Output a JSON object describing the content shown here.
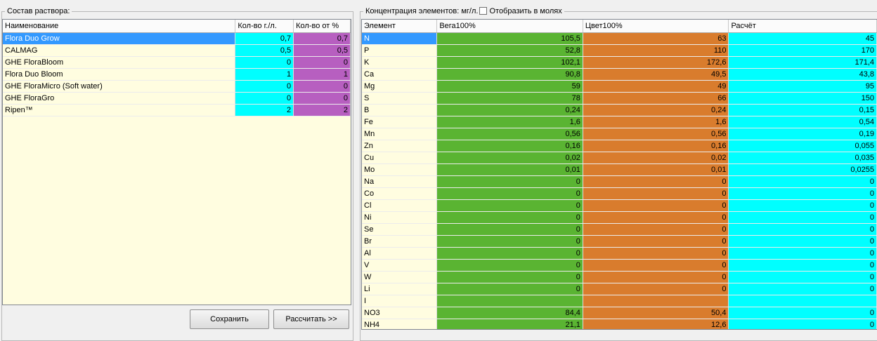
{
  "left_panel": {
    "title": "Состав раствора:",
    "columns": [
      "Наименование",
      "Кол-во г./л.",
      "Кол-во от %"
    ],
    "rows": [
      {
        "name": "Flora Duo Grow",
        "grams": "0,7",
        "percent": "0,7",
        "selected": true
      },
      {
        "name": "CALMAG",
        "grams": "0,5",
        "percent": "0,5"
      },
      {
        "name": "GHE FloraBloom",
        "grams": "0",
        "percent": "0"
      },
      {
        "name": "Flora Duo Bloom",
        "grams": "1",
        "percent": "1"
      },
      {
        "name": "GHE FloraMicro (Soft water)",
        "grams": "0",
        "percent": "0"
      },
      {
        "name": "GHE FloraGro",
        "grams": "0",
        "percent": "0"
      },
      {
        "name": "Ripen™",
        "grams": "2",
        "percent": "2"
      }
    ],
    "buttons": {
      "save": "Сохранить",
      "calculate": "Рассчитать >>"
    }
  },
  "right_panel": {
    "title": "Концентрация элементов: мг/л.",
    "checkbox_label": "Отобразить в молях",
    "checkbox_checked": false,
    "columns": [
      "Элемент",
      "Вега100%",
      "Цвет100%",
      "Расчёт"
    ],
    "rows": [
      {
        "element": "N",
        "vega": "105,5",
        "cvet": "63",
        "calc": "45",
        "selected": true
      },
      {
        "element": "P",
        "vega": "52,8",
        "cvet": "110",
        "calc": "170"
      },
      {
        "element": "K",
        "vega": "102,1",
        "cvet": "172,6",
        "calc": "171,4"
      },
      {
        "element": "Ca",
        "vega": "90,8",
        "cvet": "49,5",
        "calc": "43,8"
      },
      {
        "element": "Mg",
        "vega": "59",
        "cvet": "49",
        "calc": "95"
      },
      {
        "element": "S",
        "vega": "78",
        "cvet": "66",
        "calc": "150"
      },
      {
        "element": "B",
        "vega": "0,24",
        "cvet": "0,24",
        "calc": "0,15"
      },
      {
        "element": "Fe",
        "vega": "1,6",
        "cvet": "1,6",
        "calc": "0,54"
      },
      {
        "element": "Mn",
        "vega": "0,56",
        "cvet": "0,56",
        "calc": "0,19"
      },
      {
        "element": "Zn",
        "vega": "0,16",
        "cvet": "0,16",
        "calc": "0,055"
      },
      {
        "element": "Cu",
        "vega": "0,02",
        "cvet": "0,02",
        "calc": "0,035"
      },
      {
        "element": "Mo",
        "vega": "0,01",
        "cvet": "0,01",
        "calc": "0,0255"
      },
      {
        "element": "Na",
        "vega": "0",
        "cvet": "0",
        "calc": "0"
      },
      {
        "element": "Co",
        "vega": "0",
        "cvet": "0",
        "calc": "0"
      },
      {
        "element": "Cl",
        "vega": "0",
        "cvet": "0",
        "calc": "0"
      },
      {
        "element": "Ni",
        "vega": "0",
        "cvet": "0",
        "calc": "0"
      },
      {
        "element": "Se",
        "vega": "0",
        "cvet": "0",
        "calc": "0"
      },
      {
        "element": "Br",
        "vega": "0",
        "cvet": "0",
        "calc": "0"
      },
      {
        "element": "Al",
        "vega": "0",
        "cvet": "0",
        "calc": "0"
      },
      {
        "element": "V",
        "vega": "0",
        "cvet": "0",
        "calc": "0"
      },
      {
        "element": "W",
        "vega": "0",
        "cvet": "0",
        "calc": "0"
      },
      {
        "element": "Li",
        "vega": "0",
        "cvet": "0",
        "calc": "0"
      },
      {
        "element": "I",
        "vega": "",
        "cvet": "",
        "calc": ""
      },
      {
        "element": "NO3",
        "vega": "84,4",
        "cvet": "50,4",
        "calc": "0"
      },
      {
        "element": "NH4",
        "vega": "21,1",
        "cvet": "12,6",
        "calc": "0"
      }
    ]
  },
  "colors": {
    "grid_background": "#fffde0",
    "selection": "#3399ff",
    "cyan": "#00ffff",
    "purple": "#b75fc0",
    "green": "#5ab432",
    "orange": "#d97c2d"
  }
}
